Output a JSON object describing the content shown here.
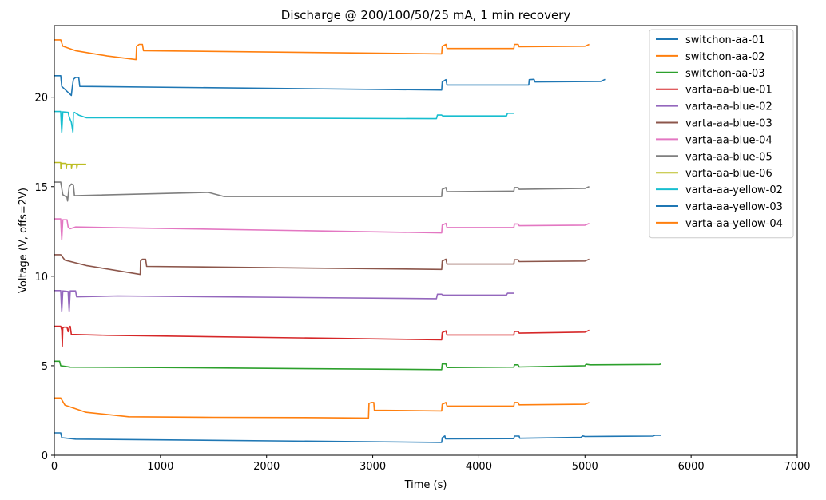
{
  "chart_data": {
    "type": "line",
    "title": "Discharge @ 200/100/50/25 mA, 1 min recovery",
    "xlabel": "Time (s)",
    "ylabel": "Voltage (V, offs=2V)",
    "xlim": [
      0,
      7000
    ],
    "ylim": [
      0,
      24
    ],
    "xticks": [
      0,
      1000,
      2000,
      3000,
      4000,
      5000,
      6000,
      7000
    ],
    "yticks": [
      0,
      5,
      10,
      15,
      20
    ],
    "legend_position": "top-right",
    "grid": false,
    "series": [
      {
        "name": "switchon-aa-01",
        "color": "#1f77b4",
        "x": [
          0,
          60,
          70,
          200,
          3650,
          3655,
          3680,
          3685,
          3720,
          4330,
          4335,
          4380,
          4385,
          4960,
          4980,
          5000,
          5640,
          5660,
          5720
        ],
        "y": [
          1.25,
          1.25,
          0.98,
          0.9,
          0.72,
          0.98,
          1.08,
          0.92,
          0.92,
          0.93,
          1.07,
          1.07,
          0.95,
          1.0,
          1.08,
          1.05,
          1.07,
          1.12,
          1.12
        ]
      },
      {
        "name": "switchon-aa-02",
        "color": "#ff7f0e",
        "x": [
          0,
          60,
          100,
          300,
          700,
          1500,
          2500,
          2960,
          2965,
          2990,
          3010,
          3015,
          3650,
          3655,
          3690,
          3700,
          4330,
          4335,
          4370,
          4380,
          5000,
          5040
        ],
        "y": [
          3.2,
          3.2,
          2.8,
          2.4,
          2.15,
          2.12,
          2.1,
          2.08,
          2.9,
          2.95,
          2.95,
          2.52,
          2.48,
          2.85,
          2.95,
          2.75,
          2.75,
          2.95,
          2.95,
          2.82,
          2.85,
          2.95
        ]
      },
      {
        "name": "switchon-aa-03",
        "color": "#2ca02c",
        "x": [
          0,
          50,
          60,
          150,
          1000,
          3650,
          3655,
          3690,
          3700,
          4330,
          4335,
          4370,
          4380,
          5000,
          5010,
          5050,
          5700,
          5720
        ],
        "y": [
          5.25,
          5.25,
          5.0,
          4.92,
          4.9,
          4.78,
          5.1,
          5.1,
          4.9,
          4.92,
          5.05,
          5.05,
          4.93,
          5.0,
          5.08,
          5.05,
          5.07,
          5.1
        ]
      },
      {
        "name": "varta-aa-blue-01",
        "color": "#d62728",
        "x": [
          0,
          60,
          70,
          75,
          80,
          90,
          120,
          130,
          140,
          150,
          160,
          500,
          3650,
          3655,
          3690,
          3700,
          4330,
          4335,
          4370,
          4380,
          5000,
          5040
        ],
        "y": [
          7.2,
          7.2,
          7.0,
          6.1,
          7.1,
          7.15,
          7.15,
          6.9,
          7.15,
          7.2,
          6.75,
          6.7,
          6.45,
          6.85,
          6.95,
          6.72,
          6.72,
          6.92,
          6.92,
          6.82,
          6.88,
          6.98
        ]
      },
      {
        "name": "varta-aa-blue-02",
        "color": "#9467bd",
        "x": [
          0,
          60,
          65,
          70,
          80,
          130,
          135,
          140,
          150,
          200,
          210,
          220,
          600,
          3600,
          3610,
          3650,
          3660,
          4260,
          4270,
          4330
        ],
        "y": [
          9.2,
          9.2,
          8.6,
          8.05,
          9.18,
          9.15,
          8.6,
          8.05,
          9.18,
          9.18,
          8.85,
          8.85,
          8.9,
          8.75,
          9.0,
          9.0,
          8.95,
          8.95,
          9.05,
          9.05
        ]
      },
      {
        "name": "varta-aa-blue-03",
        "color": "#8c564b",
        "x": [
          0,
          60,
          100,
          300,
          810,
          812,
          830,
          860,
          870,
          3650,
          3655,
          3690,
          3700,
          4330,
          4335,
          4370,
          4380,
          5000,
          5040
        ],
        "y": [
          11.2,
          11.2,
          10.9,
          10.6,
          10.1,
          10.85,
          10.95,
          10.95,
          10.55,
          10.38,
          10.85,
          10.95,
          10.68,
          10.68,
          10.92,
          10.92,
          10.82,
          10.85,
          10.95
        ]
      },
      {
        "name": "varta-aa-blue-04",
        "color": "#e377c2",
        "x": [
          0,
          60,
          65,
          70,
          80,
          120,
          130,
          150,
          200,
          500,
          3650,
          3655,
          3690,
          3700,
          4330,
          4335,
          4370,
          4380,
          5000,
          5040
        ],
        "y": [
          13.2,
          13.2,
          12.6,
          12.05,
          13.15,
          13.15,
          12.75,
          12.65,
          12.75,
          12.72,
          12.42,
          12.85,
          12.95,
          12.72,
          12.72,
          12.92,
          12.92,
          12.82,
          12.85,
          12.95
        ]
      },
      {
        "name": "varta-aa-blue-05",
        "color": "#7f7f7f",
        "x": [
          0,
          60,
          80,
          120,
          125,
          140,
          160,
          180,
          190,
          1450,
          1600,
          3650,
          3655,
          3690,
          3700,
          4330,
          4335,
          4370,
          4380,
          5000,
          5040
        ],
        "y": [
          15.25,
          15.25,
          14.55,
          14.4,
          14.2,
          15.0,
          15.15,
          15.1,
          14.5,
          14.68,
          14.45,
          14.45,
          14.85,
          14.95,
          14.72,
          14.75,
          14.95,
          14.95,
          14.85,
          14.9,
          15.0
        ]
      },
      {
        "name": "varta-aa-blue-06",
        "color": "#bcbd22",
        "x": [
          0,
          60,
          62,
          65,
          70,
          110,
          112,
          118,
          160,
          162,
          168,
          210,
          212,
          218,
          300
        ],
        "y": [
          16.35,
          16.35,
          16.0,
          16.3,
          16.3,
          16.3,
          16.0,
          16.25,
          16.25,
          16.05,
          16.25,
          16.25,
          16.05,
          16.25,
          16.25
        ]
      },
      {
        "name": "varta-aa-yellow-02",
        "color": "#17becf",
        "x": [
          0,
          60,
          65,
          70,
          80,
          130,
          140,
          160,
          175,
          180,
          190,
          230,
          300,
          600,
          3600,
          3610,
          3650,
          3660,
          4260,
          4270,
          4330
        ],
        "y": [
          19.2,
          19.2,
          18.6,
          18.05,
          19.18,
          19.15,
          18.9,
          18.6,
          18.05,
          19.1,
          19.15,
          19.0,
          18.85,
          18.85,
          18.8,
          19.0,
          19.0,
          18.95,
          18.95,
          19.1,
          19.1
        ]
      },
      {
        "name": "varta-aa-yellow-03",
        "color": "#1f77b4",
        "x": [
          0,
          60,
          70,
          160,
          170,
          180,
          200,
          230,
          240,
          3650,
          3655,
          3690,
          3700,
          4470,
          4475,
          4520,
          4530,
          5150,
          5190
        ],
        "y": [
          21.2,
          21.2,
          20.6,
          20.1,
          20.6,
          21.0,
          21.1,
          21.1,
          20.6,
          20.4,
          20.85,
          20.98,
          20.68,
          20.68,
          20.98,
          21.0,
          20.85,
          20.88,
          21.0
        ]
      },
      {
        "name": "varta-aa-yellow-04",
        "color": "#ff7f0e",
        "x": [
          0,
          60,
          80,
          200,
          500,
          770,
          775,
          800,
          830,
          840,
          3650,
          3655,
          3690,
          3700,
          4330,
          4335,
          4370,
          4380,
          5000,
          5040
        ],
        "y": [
          23.2,
          23.2,
          22.85,
          22.6,
          22.3,
          22.1,
          22.85,
          22.95,
          22.95,
          22.6,
          22.42,
          22.85,
          22.95,
          22.72,
          22.72,
          22.95,
          22.95,
          22.82,
          22.85,
          22.95
        ]
      }
    ]
  }
}
